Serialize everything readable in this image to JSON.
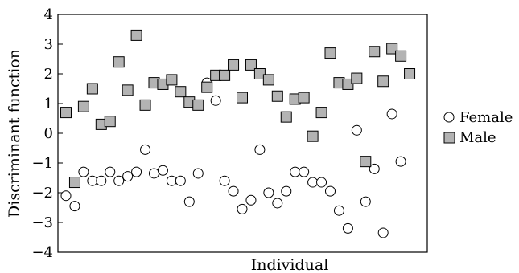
{
  "chart_data": {
    "type": "scatter",
    "xlabel": "Individual",
    "ylabel": "Discriminant function",
    "ylim": [
      -4,
      4
    ],
    "yticks": [
      -4,
      -3,
      -2,
      -1,
      0,
      1,
      2,
      3,
      4
    ],
    "ytick_labels": [
      "−4",
      "−3",
      "−2",
      "−1",
      "0",
      "1",
      "2",
      "3",
      "4"
    ],
    "xlim": [
      0,
      50
    ],
    "x_ticks_shown": false,
    "grid": false,
    "legend_position": "right",
    "series": [
      {
        "name": "Female",
        "marker": "open-circle",
        "color": "#000000",
        "fill": "#ffffff",
        "x": [
          1,
          2,
          3,
          4,
          5,
          6,
          7,
          8,
          9,
          10,
          11,
          12,
          13,
          14,
          15,
          16,
          17,
          18,
          19,
          20,
          21,
          22,
          23,
          24,
          25,
          26,
          27,
          28,
          29,
          30,
          31,
          32,
          33,
          34,
          35,
          36,
          37,
          38,
          39,
          40,
          41,
          42,
          43
        ],
        "y": [
          -2.1,
          -2.45,
          -1.3,
          -1.6,
          -1.6,
          -1.3,
          -1.6,
          -1.45,
          -1.3,
          -0.55,
          -1.35,
          -1.25,
          -1.6,
          -1.6,
          -2.3,
          -1.35,
          1.7,
          1.1,
          -1.6,
          -1.95,
          -2.55,
          -2.25,
          -0.55,
          -2.0,
          -2.35,
          -1.95,
          -1.3,
          -1.3,
          -1.65,
          -1.65,
          -1.95,
          -2.6,
          -3.2,
          0.1,
          -2.3,
          -1.2,
          -3.35,
          0.65,
          -0.95,
          null,
          null,
          null,
          null
        ]
      },
      {
        "name": "Male",
        "marker": "square",
        "color": "#000000",
        "fill": "#b3b3b3",
        "x": [
          1,
          2,
          3,
          4,
          5,
          6,
          7,
          8,
          9,
          10,
          11,
          12,
          13,
          14,
          15,
          16,
          17,
          18,
          19,
          20,
          21,
          22,
          23,
          24,
          25,
          26,
          27,
          28,
          29,
          30,
          31,
          32,
          33,
          34,
          35,
          36,
          37,
          38,
          39,
          40,
          41,
          42
        ],
        "y": [
          0.7,
          -1.65,
          0.9,
          1.5,
          0.3,
          0.4,
          2.4,
          1.45,
          3.3,
          0.95,
          1.7,
          1.65,
          1.8,
          1.4,
          1.05,
          0.95,
          1.55,
          1.95,
          1.95,
          2.3,
          1.2,
          2.3,
          2.0,
          1.8,
          1.25,
          0.55,
          1.15,
          1.2,
          -0.1,
          0.7,
          2.7,
          1.7,
          1.65,
          1.85,
          -0.95,
          2.75,
          1.75,
          2.85,
          2.6,
          2.0,
          null,
          null
        ]
      }
    ]
  }
}
